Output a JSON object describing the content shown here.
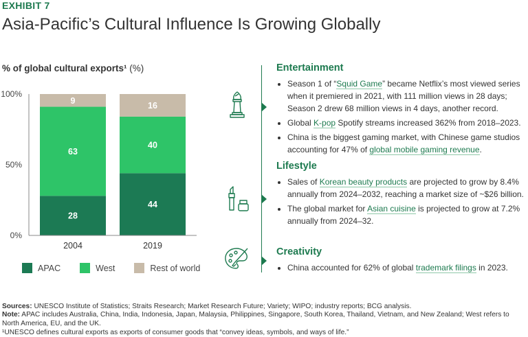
{
  "exhibit_label": "EXHIBIT 7",
  "title": "Asia-Pacific’s Cultural Influence Is Growing Globally",
  "chart_title": "% of global cultural exports¹",
  "chart_unit": "(%)",
  "chart_data": {
    "type": "bar",
    "stacked": true,
    "categories": [
      "2004",
      "2019"
    ],
    "series": [
      {
        "name": "APAC",
        "values": [
          28,
          44
        ],
        "color": "#1c7a54"
      },
      {
        "name": "West",
        "values": [
          63,
          40
        ],
        "color": "#2ec468"
      },
      {
        "name": "Rest of world",
        "values": [
          9,
          16
        ],
        "color": "#c8bba9"
      }
    ],
    "ytick_labels": [
      "0%",
      "50%",
      "100%"
    ],
    "ylim": [
      0,
      100
    ],
    "legend_position": "bottom"
  },
  "sections": [
    {
      "title": "Entertainment",
      "icon": "chess-piece-icon",
      "bullets": [
        [
          {
            "t": "Season 1 of “"
          },
          {
            "t": "Squid Game",
            "hl": true
          },
          {
            "t": "” became Netflix’s most viewed series when it premiered in 2021, with 111 million views in 28 days; Season 2 drew 68 million views in 4 days, another record."
          }
        ],
        [
          {
            "t": "Global "
          },
          {
            "t": "K-pop",
            "hl": true
          },
          {
            "t": " Spotify streams increased 362% from 2018–2023."
          }
        ],
        [
          {
            "t": "China is the biggest gaming market, with Chinese game studios accounting for 47% of "
          },
          {
            "t": "global mobile gaming revenue",
            "hl": true
          },
          {
            "t": "."
          }
        ]
      ]
    },
    {
      "title": "Lifestyle",
      "icon": "cosmetics-icon",
      "bullets": [
        [
          {
            "t": "Sales of "
          },
          {
            "t": "Korean beauty products",
            "hl": true
          },
          {
            "t": " are projected to grow by 8.4% annually from 2024–2032, reaching a market size of ~$26 billion."
          }
        ],
        [
          {
            "t": "The global market for "
          },
          {
            "t": "Asian cuisine",
            "hl": true
          },
          {
            "t": " is projected to grow at 7.2% annually from 2024–32."
          }
        ]
      ]
    },
    {
      "title": "Creativity",
      "icon": "palette-icon",
      "bullets": [
        [
          {
            "t": "China accounted for 62% of global "
          },
          {
            "t": "trademark filings",
            "hl": true
          },
          {
            "t": " in 2023."
          }
        ]
      ]
    }
  ],
  "footer": {
    "sources_label": "Sources:",
    "sources": " UNESCO Institute of Statistics; Straits Research; Market Research Future; Variety; WIPO; industry reports; BCG analysis.",
    "note_label": "Note:",
    "note": " APAC includes Australia, China, India, Indonesia, Japan, Malaysia, Philippines, Singapore, South Korea, Thailand, Vietnam, and New Zealand; West refers to North America, EU, and the UK.",
    "footnote": "¹UNESCO defines cultural exports as exports of consumer goods that “convey ideas, symbols, and ways of life.”"
  }
}
